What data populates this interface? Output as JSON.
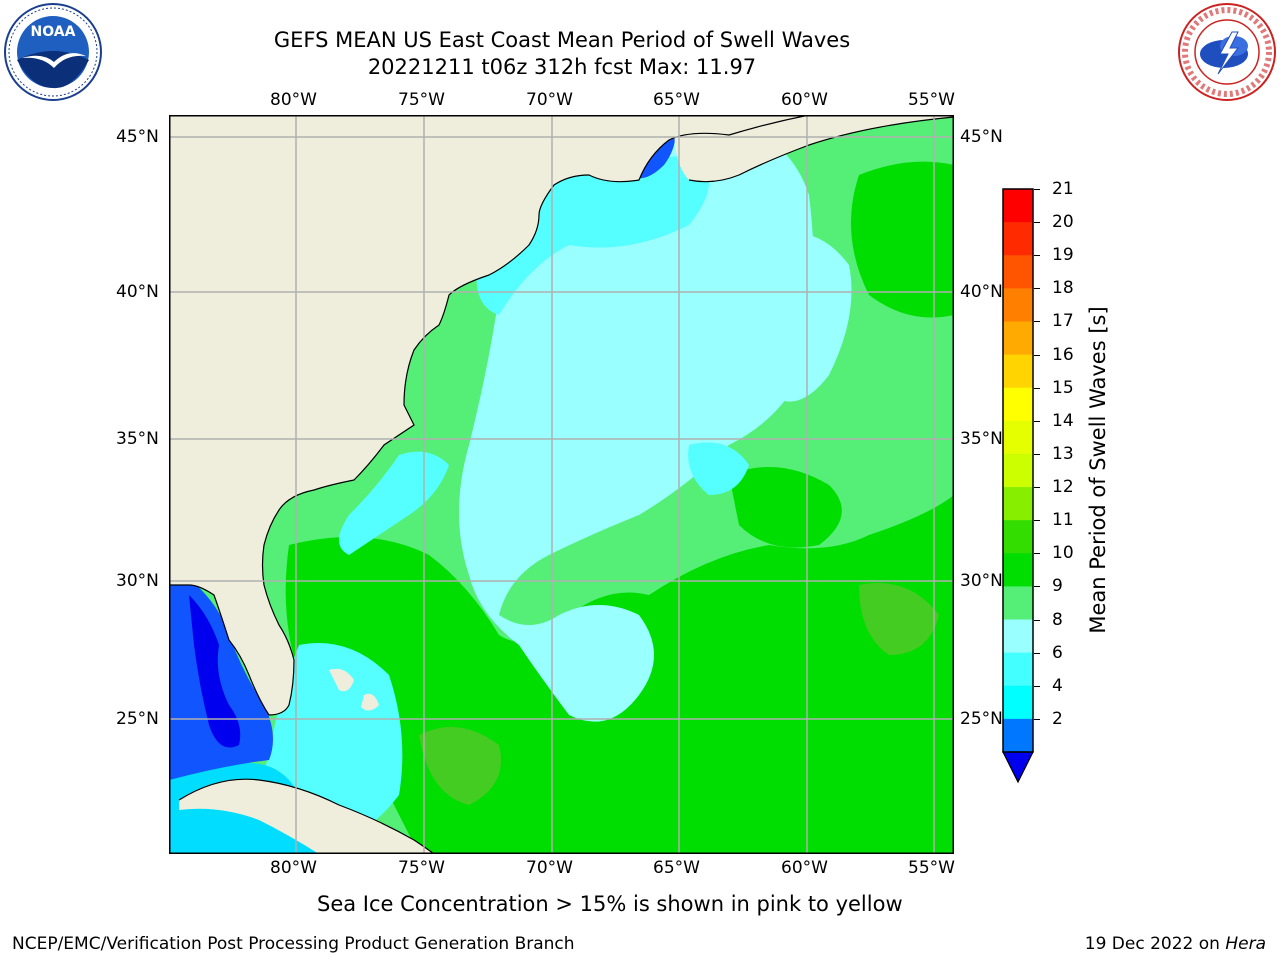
{
  "title": {
    "line1": "GEFS MEAN US East Coast Mean Period of Swell Waves",
    "line2": "20221211 t06z 312h fcst   Max: 11.97"
  },
  "logos": {
    "left_text": "NOAA",
    "left_ring_text": "NATIONAL OCEANIC AND ATMOSPHERIC ADMINISTRATION · U.S. DEPARTMENT OF COMMERCE",
    "right_ring_text": "NATIONAL WEATHER SERVICE"
  },
  "axes": {
    "lon_labels": [
      "80°W",
      "75°W",
      "70°W",
      "65°W",
      "60°W",
      "55°W"
    ],
    "lat_labels": [
      "45°N",
      "40°N",
      "35°N",
      "30°N",
      "25°N"
    ]
  },
  "colorbar": {
    "label": "Mean Period of Swell Waves [s]",
    "ticks": [
      "21",
      "20",
      "19",
      "18",
      "17",
      "16",
      "15",
      "14",
      "13",
      "12",
      "11",
      "10",
      "9",
      "8",
      "6",
      "4",
      "2"
    ],
    "colors": [
      "#ff0000",
      "#ff2a00",
      "#ff5500",
      "#ff7f00",
      "#ffaa00",
      "#ffd400",
      "#ffff00",
      "#e6ff00",
      "#ccff00",
      "#88ee00",
      "#33dd00",
      "#00dd00",
      "#55ee77",
      "#99ffff",
      "#44ffff",
      "#00ffff",
      "#0077ff"
    ],
    "extend_color": "#0000ee"
  },
  "map_colors": {
    "land": "#efeedd",
    "grid": "#b0b0b0",
    "swell_2_4": "#1155ff",
    "swell_4_6": "#00ddff",
    "swell_6_8": "#55ffff",
    "swell_8_9": "#99ffff",
    "swell_9_10": "#55ee77",
    "swell_10_11": "#00dd00",
    "swell_11_12": "#44cc22",
    "below_2": "#0000ee"
  },
  "note": "Sea Ice Concentration > 15% is shown in pink to yellow",
  "footer": {
    "left": "NCEP/EMC/Verification Post Processing Product Generation Branch",
    "date": "19 Dec 2022 on ",
    "machine": "Hera"
  }
}
